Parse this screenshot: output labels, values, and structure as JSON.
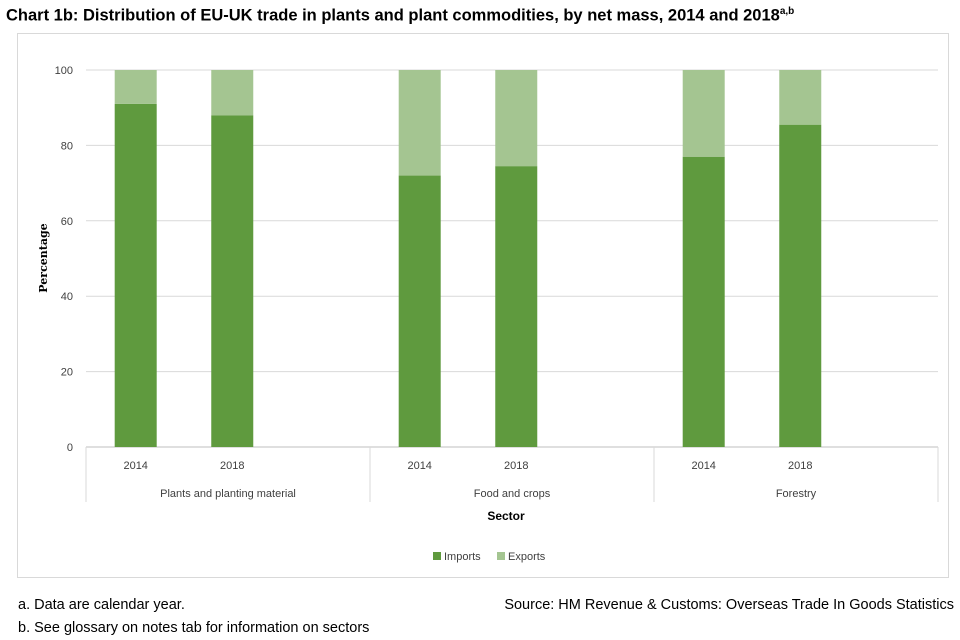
{
  "page": {
    "title": "Chart 1b: Distribution of EU-UK trade in plants and plant commodities, by net mass, 2014 and 2018",
    "title_superscript": "a,b",
    "footnote_a": "a. Data are calendar year.",
    "footnote_b": "b. See glossary on notes tab for information on sectors",
    "source": "Source: HM Revenue & Customs: Overseas Trade In Goods Statistics"
  },
  "chart_data": {
    "type": "bar",
    "stacked": true,
    "title": "Chart 1b: Distribution of EU-UK trade in plants and plant commodities, by net mass, 2014 and 2018",
    "xlabel": "Sector",
    "ylabel": "Percentage",
    "ylim": [
      0,
      100
    ],
    "yticks": [
      0,
      20,
      40,
      60,
      80,
      100
    ],
    "grid": true,
    "legend": "bottom",
    "groups": [
      {
        "name": "Plants and planting material",
        "categories": [
          "2014",
          "2018"
        ]
      },
      {
        "name": "Food and crops",
        "categories": [
          "2014",
          "2018"
        ]
      },
      {
        "name": "Forestry",
        "categories": [
          "2014",
          "2018"
        ]
      }
    ],
    "series": [
      {
        "name": "Imports",
        "color": "#5f9a3e",
        "values": [
          91,
          88,
          72,
          74.5,
          77,
          85.5
        ]
      },
      {
        "name": "Exports",
        "color": "#a4c591",
        "values": [
          9,
          12,
          28,
          25.5,
          23,
          14.5
        ]
      }
    ]
  }
}
